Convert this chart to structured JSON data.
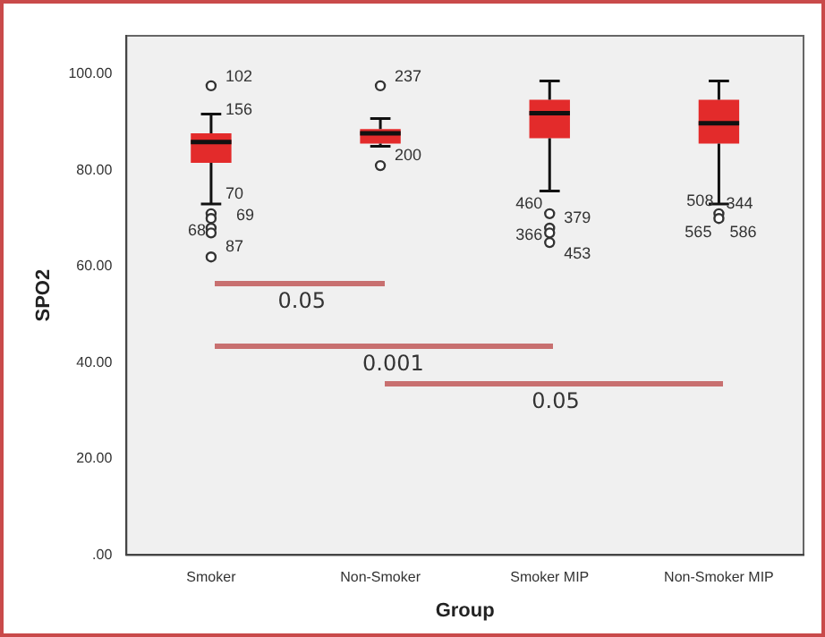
{
  "chart_data": {
    "type": "box",
    "xlabel": "Group",
    "ylabel": "SPO2",
    "categories": [
      "Smoker",
      "Non-Smoker",
      "Smoker MIP",
      "Non-Smoker MIP"
    ],
    "color": "#e32b2b",
    "boxes": [
      {
        "low": 73,
        "q1": 81.6,
        "median": 85.9,
        "q3": 87.7,
        "high": 91.7,
        "outliers": [
          97.6,
          71,
          70,
          68,
          67,
          62
        ]
      },
      {
        "low": 85,
        "q1": 85.6,
        "median": 87.7,
        "q3": 88.6,
        "high": 90.8,
        "outliers": [
          97.6,
          81
        ]
      },
      {
        "low": 75.7,
        "q1": 86.7,
        "median": 91.9,
        "q3": 94.7,
        "high": 98.6,
        "outliers": [
          71,
          68,
          67,
          65
        ]
      },
      {
        "low": 73,
        "q1": 85.6,
        "median": 89.8,
        "q3": 94.7,
        "high": 98.6,
        "outliers": [
          71,
          70
        ]
      }
    ],
    "ylim": [
      0,
      108
    ],
    "yticks": [
      {
        "value": 0,
        "label": ".00"
      },
      {
        "value": 20,
        "label": "20.00"
      },
      {
        "value": 40,
        "label": "40.00"
      },
      {
        "value": 60,
        "label": "60.00"
      },
      {
        "value": 80,
        "label": "80.00"
      },
      {
        "value": 100,
        "label": "100.00"
      }
    ],
    "grid": false,
    "legend": false,
    "annotations": [
      "102",
      "156",
      "70",
      "69",
      "68",
      "87",
      "237",
      "200",
      "460",
      "379",
      "366",
      "453",
      "508",
      "344",
      "565",
      "586",
      "0.05",
      "0.001",
      "0.05"
    ]
  }
}
